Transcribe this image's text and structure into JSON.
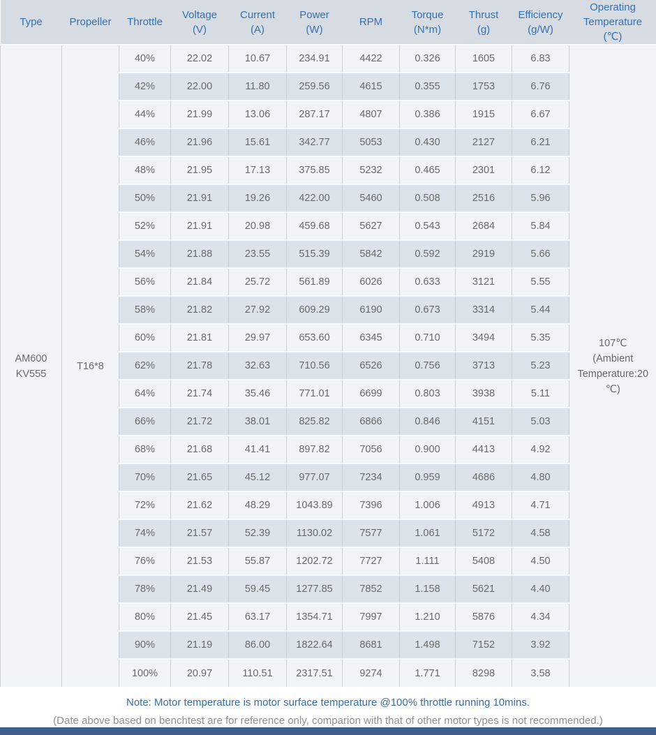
{
  "table": {
    "headers": [
      {
        "key": "type",
        "label": "Type",
        "unit": ""
      },
      {
        "key": "propeller",
        "label": "Propeller",
        "unit": ""
      },
      {
        "key": "throttle",
        "label": "Throttle",
        "unit": ""
      },
      {
        "key": "voltage",
        "label": "Voltage",
        "unit": "(V)"
      },
      {
        "key": "current",
        "label": "Current",
        "unit": "(A)"
      },
      {
        "key": "power",
        "label": "Power",
        "unit": "(W)"
      },
      {
        "key": "rpm",
        "label": "RPM",
        "unit": ""
      },
      {
        "key": "torque",
        "label": "Torque",
        "unit": "(N*m)"
      },
      {
        "key": "thrust",
        "label": "Thrust",
        "unit": "(g)"
      },
      {
        "key": "efficiency",
        "label": "Efficiency",
        "unit": "(g/W)"
      },
      {
        "key": "temperature",
        "label": "Operating Temperature",
        "unit": "(℃)"
      }
    ],
    "row_keys": [
      "throttle",
      "voltage",
      "current",
      "power",
      "rpm",
      "torque",
      "thrust",
      "efficiency"
    ],
    "type_lines": [
      "AM600",
      "KV555"
    ],
    "propeller": "T16*8",
    "temperature_lines": [
      "107℃",
      "(Ambient Temperature:20 ℃)"
    ]
  },
  "chart_data": {
    "type": "table",
    "columns": [
      "Type",
      "Propeller",
      "Throttle",
      "Voltage (V)",
      "Current (A)",
      "Power (W)",
      "RPM",
      "Torque (N*m)",
      "Thrust (g)",
      "Efficiency (g/W)",
      "Operating Temperature (℃)"
    ],
    "merged_values": {
      "type": "AM600 KV555",
      "propeller": "T16*8",
      "operating_temperature": "107℃ (Ambient Temperature:20 ℃)"
    },
    "rows": [
      [
        "40%",
        "22.02",
        "10.67",
        "234.91",
        "4422",
        "0.326",
        "1605",
        "6.83"
      ],
      [
        "42%",
        "22.00",
        "11.80",
        "259.56",
        "4615",
        "0.355",
        "1753",
        "6.76"
      ],
      [
        "44%",
        "21.99",
        "13.06",
        "287.17",
        "4807",
        "0.386",
        "1915",
        "6.67"
      ],
      [
        "46%",
        "21.96",
        "15.61",
        "342.77",
        "5053",
        "0.430",
        "2127",
        "6.21"
      ],
      [
        "48%",
        "21.95",
        "17.13",
        "375.85",
        "5232",
        "0.465",
        "2301",
        "6.12"
      ],
      [
        "50%",
        "21.91",
        "19.26",
        "422.00",
        "5460",
        "0.508",
        "2516",
        "5.96"
      ],
      [
        "52%",
        "21.91",
        "20.98",
        "459.68",
        "5627",
        "0.543",
        "2684",
        "5.84"
      ],
      [
        "54%",
        "21.88",
        "23.55",
        "515.39",
        "5842",
        "0.592",
        "2919",
        "5.66"
      ],
      [
        "56%",
        "21.84",
        "25.72",
        "561.89",
        "6026",
        "0.633",
        "3121",
        "5.55"
      ],
      [
        "58%",
        "21.82",
        "27.92",
        "609.29",
        "6190",
        "0.673",
        "3314",
        "5.44"
      ],
      [
        "60%",
        "21.81",
        "29.97",
        "653.60",
        "6345",
        "0.710",
        "3494",
        "5.35"
      ],
      [
        "62%",
        "21.78",
        "32.63",
        "710.56",
        "6526",
        "0.756",
        "3713",
        "5.23"
      ],
      [
        "64%",
        "21.74",
        "35.46",
        "771.01",
        "6699",
        "0.803",
        "3938",
        "5.11"
      ],
      [
        "66%",
        "21.72",
        "38.01",
        "825.82",
        "6866",
        "0.846",
        "4151",
        "5.03"
      ],
      [
        "68%",
        "21.68",
        "41.41",
        "897.82",
        "7056",
        "0.900",
        "4413",
        "4.92"
      ],
      [
        "70%",
        "21.65",
        "45.12",
        "977.07",
        "7234",
        "0.959",
        "4686",
        "4.80"
      ],
      [
        "72%",
        "21.62",
        "48.29",
        "1043.89",
        "7396",
        "1.006",
        "4913",
        "4.71"
      ],
      [
        "74%",
        "21.57",
        "52.39",
        "1130.02",
        "7577",
        "1.061",
        "5172",
        "4.58"
      ],
      [
        "76%",
        "21.53",
        "55.87",
        "1202.72",
        "7727",
        "1.111",
        "5408",
        "4.50"
      ],
      [
        "78%",
        "21.49",
        "59.45",
        "1277.85",
        "7852",
        "1.158",
        "5621",
        "4.40"
      ],
      [
        "80%",
        "21.45",
        "63.17",
        "1354.71",
        "7997",
        "1.210",
        "5876",
        "4.34"
      ],
      [
        "90%",
        "21.19",
        "86.00",
        "1822.64",
        "8681",
        "1.498",
        "7152",
        "3.92"
      ],
      [
        "100%",
        "20.97",
        "110.51",
        "2317.51",
        "9274",
        "1.771",
        "8298",
        "3.58"
      ]
    ]
  },
  "notes": {
    "primary": "Note: Motor temperature is motor surface temperature @100% throttle running 10mins.",
    "secondary": "(Date above based on benchtest are for reference only, comparion with that of other motor types is not recommended.)"
  },
  "colors": {
    "header_bg": "#d6dce2",
    "header_text": "#3570b0",
    "row_light": "#f1f5f9",
    "row_dark": "#dce3eb",
    "merged_bg": "#f1f5f9",
    "cell_text": "#68696b",
    "type_text": "#3673b2",
    "grid_line": "#c8ced6",
    "row_separator": "#f9fafb",
    "note_blue": "#3a6ea9",
    "note_gray": "#8f9092",
    "footer_bar": "#3e5f8e",
    "page_bg": "#ffffff"
  }
}
